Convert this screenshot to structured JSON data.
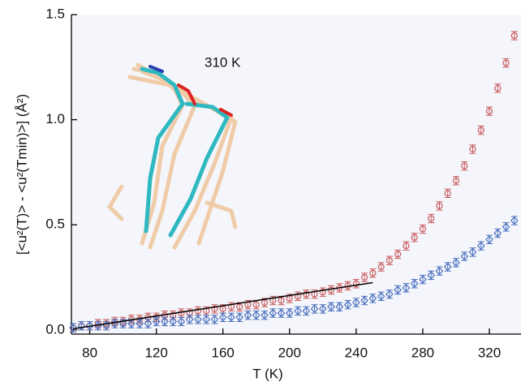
{
  "chart_data": {
    "type": "scatter",
    "annotation": "310 K",
    "x_label": "T (K)",
    "y_label": "[<u²(T)> - <u²(Tmin)>] (Å²)",
    "xlim": [
      69,
      339
    ],
    "ylim": [
      -0.02,
      1.5
    ],
    "xticks": [
      80,
      120,
      160,
      200,
      240,
      280,
      320
    ],
    "yticks": [
      {
        "value": 0,
        "label": "0.0"
      },
      0.5,
      {
        "value": 1,
        "label": "1.0"
      },
      1.5
    ],
    "x": [
      70,
      75,
      80,
      85,
      90,
      95,
      100,
      105,
      110,
      115,
      120,
      125,
      130,
      135,
      140,
      145,
      150,
      155,
      160,
      165,
      170,
      175,
      180,
      185,
      190,
      195,
      200,
      205,
      210,
      215,
      220,
      225,
      230,
      235,
      240,
      245,
      250,
      255,
      260,
      265,
      270,
      275,
      280,
      285,
      290,
      295,
      300,
      305,
      310,
      315,
      320,
      325,
      330,
      335
    ],
    "series": [
      {
        "marker": "circle",
        "color": "#c9595b",
        "error": 0.02,
        "values": [
          0.01,
          0.02,
          0.02,
          0.03,
          0.03,
          0.04,
          0.04,
          0.05,
          0.05,
          0.06,
          0.06,
          0.07,
          0.07,
          0.08,
          0.08,
          0.09,
          0.09,
          0.1,
          0.1,
          0.11,
          0.11,
          0.12,
          0.12,
          0.13,
          0.14,
          0.14,
          0.15,
          0.16,
          0.17,
          0.17,
          0.18,
          0.19,
          0.2,
          0.21,
          0.22,
          0.25,
          0.27,
          0.3,
          0.33,
          0.36,
          0.4,
          0.44,
          0.48,
          0.53,
          0.59,
          0.65,
          0.71,
          0.78,
          0.86,
          0.95,
          1.04,
          1.15,
          1.27,
          1.4
        ]
      },
      {
        "marker": "diamond",
        "color": "#4a6fbf",
        "error": 0.02,
        "values": [
          0.01,
          0.02,
          0.02,
          0.02,
          0.02,
          0.03,
          0.03,
          0.03,
          0.03,
          0.03,
          0.04,
          0.04,
          0.04,
          0.04,
          0.05,
          0.05,
          0.05,
          0.05,
          0.06,
          0.06,
          0.06,
          0.07,
          0.07,
          0.07,
          0.08,
          0.08,
          0.08,
          0.09,
          0.09,
          0.1,
          0.1,
          0.11,
          0.11,
          0.12,
          0.13,
          0.14,
          0.15,
          0.16,
          0.17,
          0.19,
          0.2,
          0.22,
          0.24,
          0.26,
          0.28,
          0.3,
          0.32,
          0.35,
          0.37,
          0.4,
          0.43,
          0.46,
          0.49,
          0.52
        ]
      }
    ],
    "fit_line": {
      "x": [
        70,
        250
      ],
      "values": [
        0.005,
        0.225
      ],
      "color": "#000000"
    }
  }
}
